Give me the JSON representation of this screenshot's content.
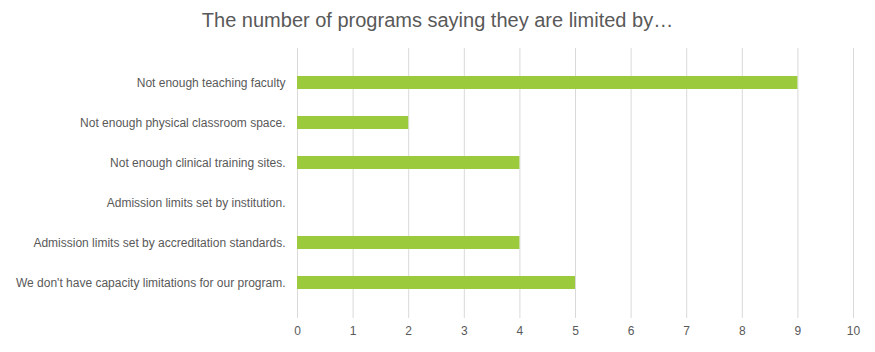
{
  "chart_data": {
    "type": "bar",
    "title": "The number of programs saying they are limited by…",
    "orientation": "horizontal",
    "categories": [
      "Not enough teaching faculty",
      "Not enough physical classroom space.",
      "Not enough clinical training sites.",
      "Admission limits set by institution.",
      "Admission limits set by accreditation standards.",
      "We don't have capacity limitations for our program."
    ],
    "values": [
      9,
      2,
      4,
      0,
      4,
      5
    ],
    "color": "#9bcb3c",
    "xlim": [
      0,
      10
    ],
    "xticks": [
      0,
      1,
      2,
      3,
      4,
      5,
      6,
      7,
      8,
      9,
      10
    ],
    "grid": true
  }
}
